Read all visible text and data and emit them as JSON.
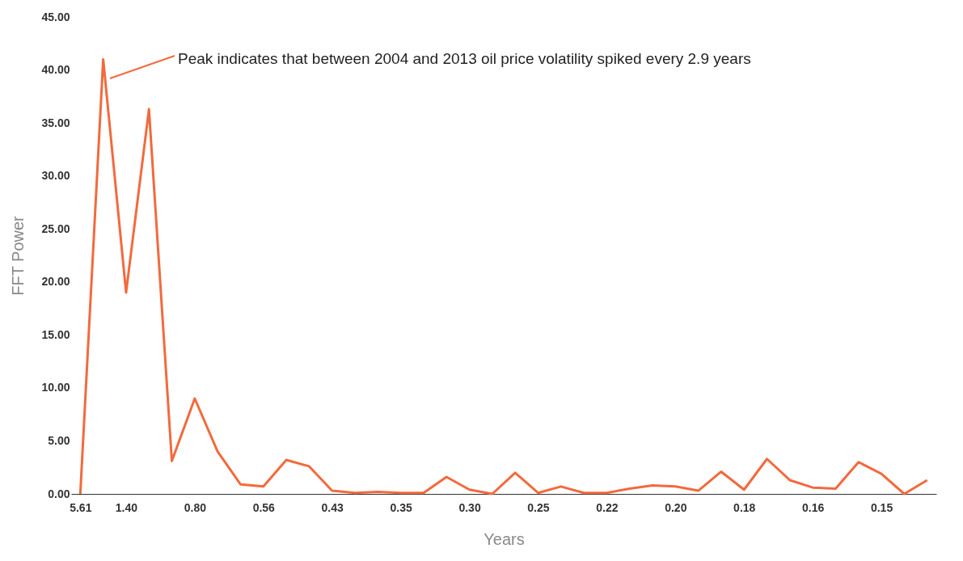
{
  "chart_data": {
    "type": "line",
    "xlabel": "Years",
    "ylabel": "FFT Power",
    "categories": [
      "5.61",
      null,
      "1.40",
      null,
      null,
      "0.80",
      null,
      null,
      "0.56",
      null,
      null,
      "0.43",
      null,
      null,
      "0.35",
      null,
      null,
      "0.30",
      null,
      null,
      "0.25",
      null,
      null,
      "0.22",
      null,
      null,
      "0.20",
      null,
      null,
      "0.18",
      null,
      null,
      "0.16",
      null,
      null,
      "0.15",
      null,
      null
    ],
    "series": [
      {
        "color": "#f26a3d",
        "values": [
          0,
          41,
          19,
          36.3,
          3.1,
          9,
          4,
          0.9,
          0.7,
          3.2,
          2.6,
          0.3,
          0.1,
          0.2,
          0.1,
          0.1,
          1.6,
          0.4,
          0,
          2.0,
          0.1,
          0.7,
          0.1,
          0.1,
          0.5,
          0.8,
          0.7,
          0.3,
          2.1,
          0.4,
          3.3,
          1.3,
          0.6,
          0.5,
          3.0,
          1.9,
          0,
          1.3
        ]
      }
    ],
    "ylim": [
      0,
      45
    ],
    "yticks": [
      {
        "value": 0,
        "label": "0.00"
      },
      {
        "value": 5,
        "label": "5.00"
      },
      {
        "value": 10,
        "label": "10.00"
      },
      {
        "value": 15,
        "label": "15.00"
      },
      {
        "value": 20,
        "label": "20.00"
      },
      {
        "value": 25,
        "label": "25.00"
      },
      {
        "value": 30,
        "label": "30.00"
      },
      {
        "value": 35,
        "label": "35.00"
      },
      {
        "value": 40,
        "label": "40.00"
      },
      {
        "value": 45,
        "label": "45.00"
      }
    ],
    "annotations": [
      "Peak indicates that between 2004 and 2013 oil price volatility spiked every 2.9 years"
    ],
    "grid": false,
    "marker": "none",
    "line_style": "solid"
  }
}
